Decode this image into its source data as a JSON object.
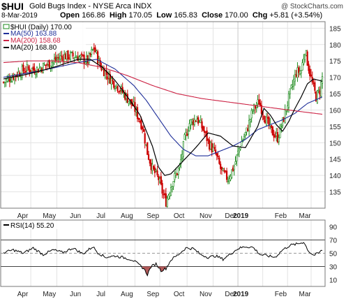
{
  "header": {
    "symbol": "$HUI",
    "name": "Gold Bugs Index - NYSE Arca INDX",
    "credit": "@ StockCharts.com",
    "date": "8-Mar-2019",
    "open_label": "Open",
    "open": "166.86",
    "high_label": "High",
    "high": "170.05",
    "low_label": "Low",
    "low": "165.83",
    "close_label": "Close",
    "close": "170.00",
    "chg_label": "Chg",
    "chg": "+5.81 (+3.54%)"
  },
  "colors": {
    "ma50": "#1f2f99",
    "ma200": "#cc2244",
    "ma20": "#000000",
    "up": "#1c8a1c",
    "down": "#cc0000",
    "rsi_fill": "#b35a5a"
  },
  "chart_data": [
    {
      "type": "line",
      "panel": "price",
      "legend_title": "$HUI (Daily) 170.00",
      "legend": [
        {
          "name": "MA(50) 163.88",
          "color": "#1f2f99"
        },
        {
          "name": "MA(200) 158.68",
          "color": "#cc2244"
        },
        {
          "name": "MA(20) 168.80",
          "color": "#000000"
        }
      ],
      "legend_placement": "top-left",
      "ylim": [
        130,
        187
      ],
      "y_ticks": [
        "135",
        "140",
        "145",
        "150",
        "155",
        "160",
        "165",
        "170",
        "175",
        "180",
        "185"
      ],
      "x_ticks": [
        "Apr",
        "May",
        "Jun",
        "Jul",
        "Aug",
        "Sep",
        "Oct",
        "Nov",
        "Dec",
        "2019",
        "Feb",
        "Mar"
      ],
      "grid": true,
      "anchors_price": [
        [
          0,
          168.5
        ],
        [
          8,
          170.5
        ],
        [
          18,
          172.5
        ],
        [
          28,
          172.5
        ],
        [
          38,
          174.5
        ],
        [
          48,
          176.5
        ],
        [
          58,
          176.5
        ],
        [
          68,
          175
        ],
        [
          73,
          179
        ],
        [
          78,
          173.5
        ],
        [
          85,
          170
        ],
        [
          95,
          166
        ],
        [
          105,
          161
        ],
        [
          112,
          155
        ],
        [
          116,
          147
        ],
        [
          120,
          142
        ],
        [
          125,
          139
        ],
        [
          128,
          135
        ],
        [
          131,
          132
        ],
        [
          136,
          138
        ],
        [
          142,
          142.5
        ],
        [
          146,
          151
        ],
        [
          150,
          156
        ],
        [
          156,
          157.5
        ],
        [
          161,
          154
        ],
        [
          166,
          149.5
        ],
        [
          171,
          146.5
        ],
        [
          176,
          141
        ],
        [
          181,
          139
        ],
        [
          186,
          143
        ],
        [
          191,
          149.5
        ],
        [
          196,
          153.5
        ],
        [
          201,
          160
        ],
        [
          206,
          162.5
        ],
        [
          211,
          157.5
        ],
        [
          216,
          153.5
        ],
        [
          221,
          151.5
        ],
        [
          226,
          157.5
        ],
        [
          231,
          165
        ],
        [
          236,
          171.5
        ],
        [
          240,
          172
        ],
        [
          243,
          178.5
        ],
        [
          246,
          173
        ],
        [
          249,
          168
        ],
        [
          252,
          164
        ],
        [
          255,
          166
        ],
        [
          257,
          170
        ]
      ],
      "series": [
        {
          "name": "MA(50) 163.88",
          "color": "#1f2f99",
          "x": [
            0,
            30,
            60,
            75,
            90,
            105,
            115,
            125,
            135,
            145,
            155,
            165,
            175,
            185,
            195,
            205,
            215,
            225,
            235,
            245,
            257
          ],
          "values": [
            170,
            172,
            174.5,
            175.5,
            172.5,
            167.5,
            163,
            157.5,
            152,
            148,
            146,
            146,
            147.5,
            149,
            151,
            154,
            155.5,
            157,
            159,
            162,
            164
          ]
        },
        {
          "name": "MA(200) 158.68",
          "color": "#cc2244",
          "x": [
            0,
            20,
            40,
            60,
            80,
            100,
            120,
            140,
            160,
            180,
            200,
            220,
            240,
            257
          ],
          "values": [
            174.5,
            175,
            175,
            174.5,
            173,
            170.5,
            167.5,
            165,
            163.5,
            162.5,
            161.5,
            160.5,
            159.5,
            158.7
          ]
        },
        {
          "name": "MA(20) 168.80",
          "color": "#000000",
          "x": [
            0,
            20,
            40,
            60,
            70,
            80,
            90,
            100,
            110,
            120,
            125,
            130,
            135,
            145,
            155,
            165,
            175,
            185,
            195,
            205,
            210,
            215,
            220,
            225,
            230,
            235,
            240,
            245,
            250,
            257
          ],
          "values": [
            169.5,
            171,
            173,
            175.5,
            175.5,
            173,
            169,
            164,
            158.5,
            149,
            142.5,
            140,
            140.5,
            144.5,
            148.5,
            153,
            152,
            149,
            148.5,
            155,
            160.5,
            158.5,
            155.5,
            153.5,
            156.5,
            160.5,
            164,
            168,
            169.5,
            168.8
          ]
        }
      ]
    },
    {
      "type": "line",
      "panel": "rsi",
      "legend_title": "RSI(14) 55.20",
      "ylim": [
        0,
        100
      ],
      "y_ticks": [
        "10",
        "30",
        "50",
        "70",
        "90"
      ],
      "reference_lines": [
        30,
        50,
        70
      ],
      "x_ticks": [
        "Apr",
        "May",
        "Jun",
        "Jul",
        "Aug",
        "Sep",
        "Oct",
        "Nov",
        "Dec",
        "2019",
        "Feb",
        "Mar"
      ],
      "anchors_rsi": [
        [
          0,
          51
        ],
        [
          8,
          55
        ],
        [
          16,
          50
        ],
        [
          24,
          58
        ],
        [
          32,
          48
        ],
        [
          40,
          55
        ],
        [
          48,
          51
        ],
        [
          56,
          58
        ],
        [
          64,
          49
        ],
        [
          72,
          60
        ],
        [
          76,
          51
        ],
        [
          82,
          44
        ],
        [
          90,
          46
        ],
        [
          98,
          43
        ],
        [
          104,
          40
        ],
        [
          109,
          33
        ],
        [
          113,
          27
        ],
        [
          116,
          18
        ],
        [
          119,
          30
        ],
        [
          123,
          34
        ],
        [
          127,
          24
        ],
        [
          131,
          27
        ],
        [
          135,
          40
        ],
        [
          141,
          48
        ],
        [
          147,
          58
        ],
        [
          153,
          57
        ],
        [
          159,
          48
        ],
        [
          165,
          44
        ],
        [
          171,
          46
        ],
        [
          177,
          41
        ],
        [
          183,
          49
        ],
        [
          189,
          57
        ],
        [
          195,
          60
        ],
        [
          201,
          59
        ],
        [
          207,
          48
        ],
        [
          213,
          46
        ],
        [
          219,
          44
        ],
        [
          225,
          55
        ],
        [
          231,
          62
        ],
        [
          237,
          64
        ],
        [
          242,
          67
        ],
        [
          246,
          53
        ],
        [
          250,
          47
        ],
        [
          254,
          50
        ],
        [
          257,
          55
        ]
      ]
    }
  ]
}
